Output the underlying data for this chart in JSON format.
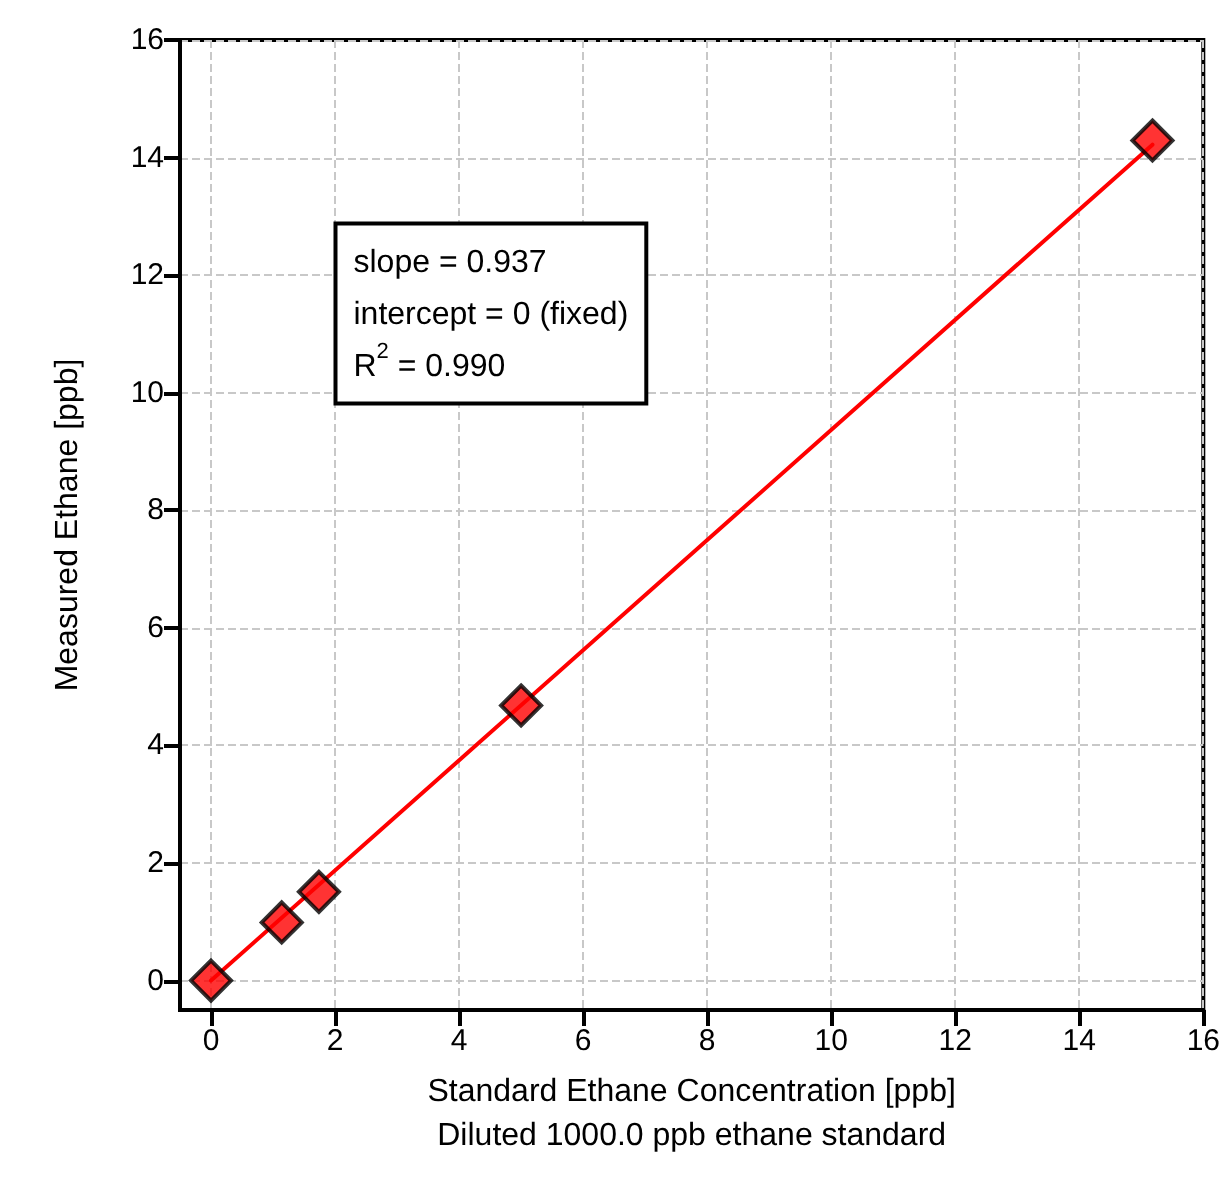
{
  "chart_data": {
    "type": "scatter",
    "xlabel": "Standard Ethane Concentration [ppb]\nDiluted 1000.0 ppb ethane standard",
    "ylabel": "Measured Ethane [ppb]",
    "series": [
      {
        "color": "#ff0000",
        "marker": "diamond",
        "x": [
          0,
          1.14,
          1.74,
          5.0,
          15.18
        ],
        "values": [
          0,
          0.99,
          1.51,
          4.68,
          14.29
        ]
      },
      {
        "type": "line",
        "color": "#ff0000",
        "marker": "none",
        "line_style": "solid",
        "x": [
          0,
          15.18
        ],
        "values": [
          0,
          14.22
        ]
      }
    ],
    "annotations": [
      "slope = 0.937",
      "intercept = 0 (fixed)",
      "R$^{2}$ = 0.990"
    ],
    "xlim": [
      -0.5,
      16
    ],
    "ylim": [
      -0.5,
      16
    ],
    "xticks": [
      0,
      2,
      4,
      6,
      8,
      10,
      12,
      14,
      16
    ],
    "yticks": [
      0,
      2,
      4,
      6,
      8,
      10,
      12,
      14,
      16
    ],
    "grid": true
  }
}
